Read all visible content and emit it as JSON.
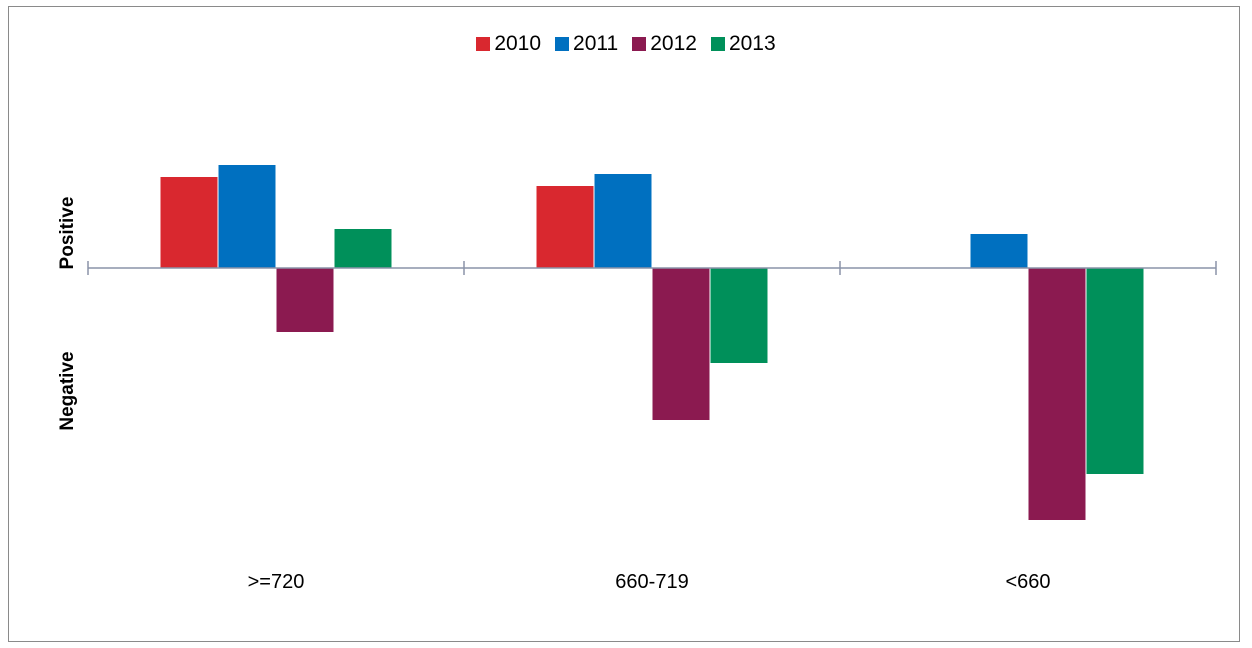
{
  "chart_data": {
    "type": "bar",
    "categories": [
      ">=720",
      "660-719",
      "<660"
    ],
    "series": [
      {
        "name": "2010",
        "color": "#d9282f",
        "values": [
          91,
          82,
          0
        ]
      },
      {
        "name": "2011",
        "color": "#0070c0",
        "values": [
          103,
          94,
          34
        ]
      },
      {
        "name": "2012",
        "color": "#8b1a50",
        "values": [
          -64,
          -152,
          -252
        ]
      },
      {
        "name": "2013",
        "color": "#00905a",
        "values": [
          39,
          -95,
          -206
        ]
      }
    ],
    "ylabel_positive": "Positive",
    "ylabel_negative": "Negative",
    "ylim": [
      -270,
      200
    ],
    "legend_position": "top-center",
    "grid": false
  }
}
